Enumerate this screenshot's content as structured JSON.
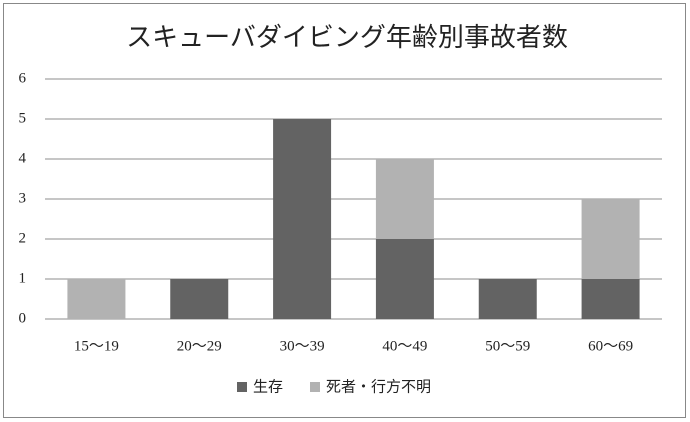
{
  "chart_data": {
    "type": "stacked-bar",
    "title": "スキューバダイビング年齢別事故者数",
    "categories": [
      "15～19",
      "20～29",
      "30～39",
      "40～49",
      "50～59",
      "60～69"
    ],
    "series": [
      {
        "name": "生存",
        "color": "#636363",
        "values": [
          0,
          1,
          5,
          2,
          1,
          1
        ]
      },
      {
        "name": "死者・行方不明",
        "color": "#b2b2b2",
        "values": [
          1,
          0,
          0,
          2,
          0,
          2
        ]
      }
    ],
    "ylim": [
      0,
      6
    ],
    "yticks": [
      0,
      1,
      2,
      3,
      4,
      5,
      6
    ],
    "grid": true,
    "legend": "bottom"
  }
}
